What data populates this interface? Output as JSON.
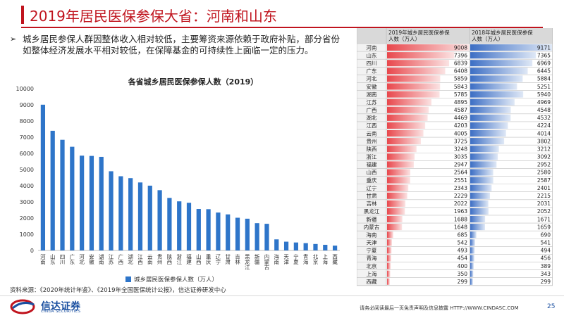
{
  "header": {
    "title": "2019年居民医保参保大省：河南和山东"
  },
  "bullet": {
    "marker": "➢",
    "text": "城乡居民参保人群因整体收入相对较低，主要筹资来源依赖于政府补贴，部分省份如整体经济发展水平相对较低，在保障基金的可持续性上面临一定的压力。"
  },
  "chart_data": [
    {
      "type": "bar",
      "title": "各省城乡居民医保参保人数（2019）",
      "xlabel": "",
      "ylabel": "",
      "ylim": [
        0,
        10000
      ],
      "yticks": [
        0,
        1000,
        2000,
        3000,
        4000,
        5000,
        6000,
        7000,
        8000,
        9000,
        10000
      ],
      "grid": false,
      "legend": "bottom",
      "color": "#2e75c9",
      "categories": [
        "河南",
        "山东",
        "四川",
        "广东",
        "河北",
        "安徽",
        "湖南",
        "江苏",
        "广西",
        "湖北",
        "江西",
        "云南",
        "贵州",
        "陕西",
        "浙江",
        "福建",
        "山西",
        "重庆",
        "辽宁",
        "甘肃",
        "吉林",
        "黑龙江",
        "新疆",
        "内蒙古",
        "海南",
        "天津",
        "宁夏",
        "青海",
        "北京",
        "上海",
        "西藏"
      ],
      "series": [
        {
          "name": "城乡居民医保参保人数（万人）",
          "values": [
            9008,
            7396,
            6839,
            6408,
            5859,
            5843,
            5785,
            4895,
            4587,
            4469,
            4203,
            4005,
            3725,
            3248,
            3035,
            2947,
            2564,
            2551,
            2343,
            2229,
            2022,
            1963,
            1688,
            1648,
            685,
            542,
            493,
            454,
            400,
            350,
            299
          ]
        }
      ]
    },
    {
      "type": "table",
      "columns": [
        "",
        "2019年城乡居民医保参保人数（万人）",
        "2018年城乡居民医保参保人数（万人）"
      ],
      "categories": [
        "河南",
        "山东",
        "四川",
        "广东",
        "河北",
        "安徽",
        "湖南",
        "江苏",
        "广西",
        "湖北",
        "江西",
        "云南",
        "贵州",
        "陕西",
        "浙江",
        "福建",
        "山西",
        "重庆",
        "辽宁",
        "甘肃",
        "吉林",
        "黑龙江",
        "新疆",
        "内蒙古",
        "海南",
        "天津",
        "宁夏",
        "青海",
        "北京",
        "上海",
        "西藏"
      ],
      "series": [
        {
          "name": "2019年城乡居民医保参保人数（万人）",
          "color": "#e8474c",
          "values": [
            9008,
            7396,
            6839,
            6408,
            5859,
            5843,
            5785,
            4895,
            4587,
            4469,
            4203,
            4005,
            3725,
            3248,
            3035,
            2947,
            2564,
            2551,
            2343,
            2229,
            2022,
            1963,
            1688,
            1648,
            685,
            542,
            493,
            454,
            400,
            350,
            299
          ]
        },
        {
          "name": "2018年城乡居民医保参保人数（万人）",
          "color": "#3c6ec4",
          "values": [
            9171,
            7365,
            6969,
            6445,
            5884,
            5251,
            5940,
            4969,
            4548,
            4532,
            4224,
            4014,
            3802,
            3212,
            3092,
            2952,
            2580,
            2587,
            2401,
            2215,
            2031,
            2052,
            1671,
            1659,
            690,
            541,
            494,
            456,
            389,
            343,
            299
          ]
        }
      ]
    }
  ],
  "footer": {
    "source": "资料来源：《2020年统计年鉴》、《2019年全国医保统计公报》，信达证券研发中心",
    "brand_name": "信达证券",
    "brand_en": "CINDA SECURITIES",
    "disclaimer": "请务必阅读最后一页免责声明及信息披露  HTTP://WWW.CINDASC.COM",
    "page_number": "25"
  },
  "colors": {
    "accent": "#c0141e",
    "brand": "#1a4fa0",
    "bar": "#2e75c9"
  }
}
